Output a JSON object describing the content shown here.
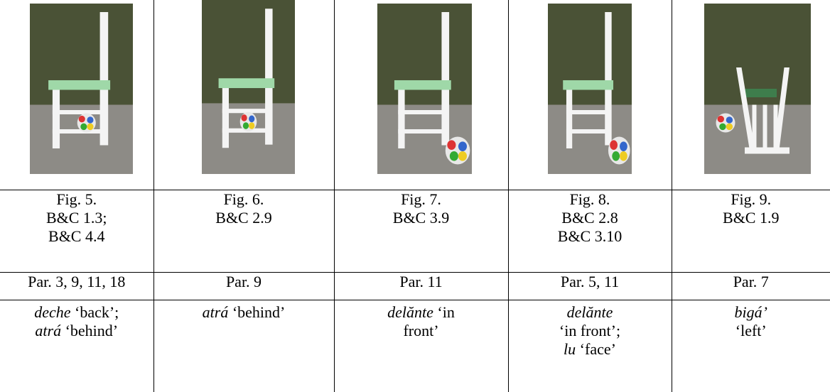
{
  "table": {
    "columns": [
      {
        "figure": "Fig. 5.",
        "refs": [
          "B&C 1.3;",
          "B&C 4.4"
        ],
        "paragraphs": "Par. 3, 9, 11, 18",
        "gloss": [
          [
            {
              "text": "deche",
              "italic": true
            },
            {
              "text": "‘back’;"
            }
          ],
          [
            {
              "text": "atrá",
              "italic": true
            },
            {
              "text": "‘behind’"
            }
          ]
        ]
      },
      {
        "figure": "Fig. 6.",
        "refs": [
          "B&C 2.9"
        ],
        "paragraphs": "Par. 9",
        "gloss": [
          [
            {
              "text": "atrá",
              "italic": true
            },
            {
              "text": "‘behind’"
            }
          ]
        ]
      },
      {
        "figure": "Fig. 7.",
        "refs": [
          "B&C 3.9"
        ],
        "paragraphs": "Par. 11",
        "gloss": [
          [
            {
              "text": "delănte",
              "italic": true
            },
            {
              "text": "‘in"
            }
          ],
          [
            {
              "text": "front’"
            }
          ]
        ]
      },
      {
        "figure": "Fig. 8.",
        "refs": [
          "B&C 2.8",
          "B&C 3.10"
        ],
        "paragraphs": "Par. 5, 11",
        "gloss": [
          [
            {
              "text": "delănte",
              "italic": true
            }
          ],
          [
            {
              "text": "‘in front’;"
            }
          ],
          [
            {
              "text": "lu",
              "italic": true
            },
            {
              "text": "‘face’"
            }
          ]
        ]
      },
      {
        "figure": "Fig. 9.",
        "refs": [
          "B&C 1.9"
        ],
        "paragraphs": "Par. 7",
        "gloss": [
          [
            {
              "text": "bigá’",
              "italic": true
            }
          ],
          [
            {
              "text": "‘left’"
            }
          ]
        ]
      }
    ]
  }
}
